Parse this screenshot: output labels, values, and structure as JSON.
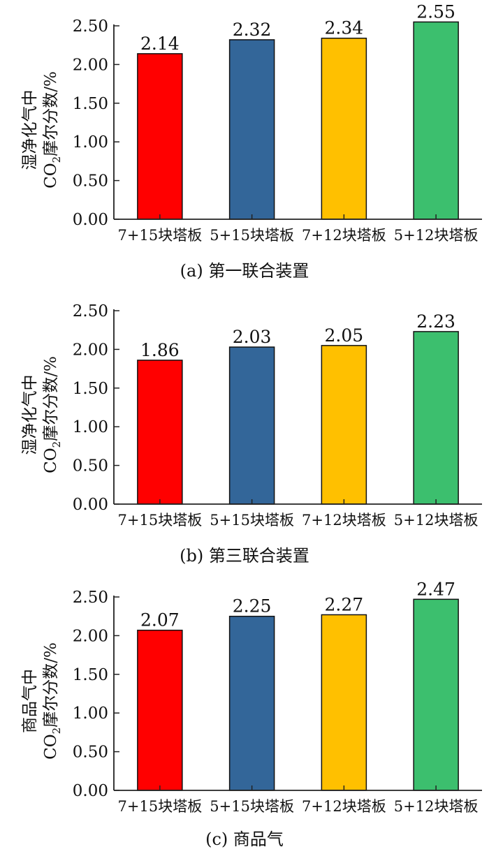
{
  "chart_data": [
    {
      "type": "bar",
      "caption": "(a) 第一联合装置",
      "ylabel_line1": "湿净化气中",
      "ylabel_line2_pre": "CO",
      "ylabel_line2_sub": "2",
      "ylabel_line2_post": "摩尔分数/%",
      "categories": [
        "7+15块塔板",
        "5+15块塔板",
        "7+12块塔板",
        "5+12块塔板"
      ],
      "values": [
        2.14,
        2.32,
        2.34,
        2.55
      ],
      "value_labels": [
        "2.14",
        "2.32",
        "2.34",
        "2.55"
      ],
      "yticks": [
        "0.00",
        "0.50",
        "1.00",
        "1.50",
        "2.00",
        "2.50"
      ],
      "ylim": [
        0,
        2.5
      ],
      "colors": [
        "#ff0000",
        "#336699",
        "#ffc000",
        "#3cbf6e"
      ]
    },
    {
      "type": "bar",
      "caption": "(b) 第三联合装置",
      "ylabel_line1": "湿净化气中",
      "ylabel_line2_pre": "CO",
      "ylabel_line2_sub": "2",
      "ylabel_line2_post": "摩尔分数/%",
      "categories": [
        "7+15块塔板",
        "5+15块塔板",
        "7+12块塔板",
        "5+12块塔板"
      ],
      "values": [
        1.86,
        2.03,
        2.05,
        2.23
      ],
      "value_labels": [
        "1.86",
        "2.03",
        "2.05",
        "2.23"
      ],
      "yticks": [
        "0.00",
        "0.50",
        "1.00",
        "1.50",
        "2.00",
        "2.50"
      ],
      "ylim": [
        0,
        2.5
      ],
      "colors": [
        "#ff0000",
        "#336699",
        "#ffc000",
        "#3cbf6e"
      ]
    },
    {
      "type": "bar",
      "caption": "(c) 商品气",
      "ylabel_line1": "商品气中",
      "ylabel_line2_pre": "CO",
      "ylabel_line2_sub": "2",
      "ylabel_line2_post": "摩尔分数/%",
      "categories": [
        "7+15块塔板",
        "5+15块塔板",
        "7+12块塔板",
        "5+12块塔板"
      ],
      "values": [
        2.07,
        2.25,
        2.27,
        2.47
      ],
      "value_labels": [
        "2.07",
        "2.25",
        "2.27",
        "2.47"
      ],
      "yticks": [
        "0.00",
        "0.50",
        "1.00",
        "1.50",
        "2.00",
        "2.50"
      ],
      "ylim": [
        0,
        2.5
      ],
      "colors": [
        "#ff0000",
        "#336699",
        "#ffc000",
        "#3cbf6e"
      ]
    }
  ]
}
